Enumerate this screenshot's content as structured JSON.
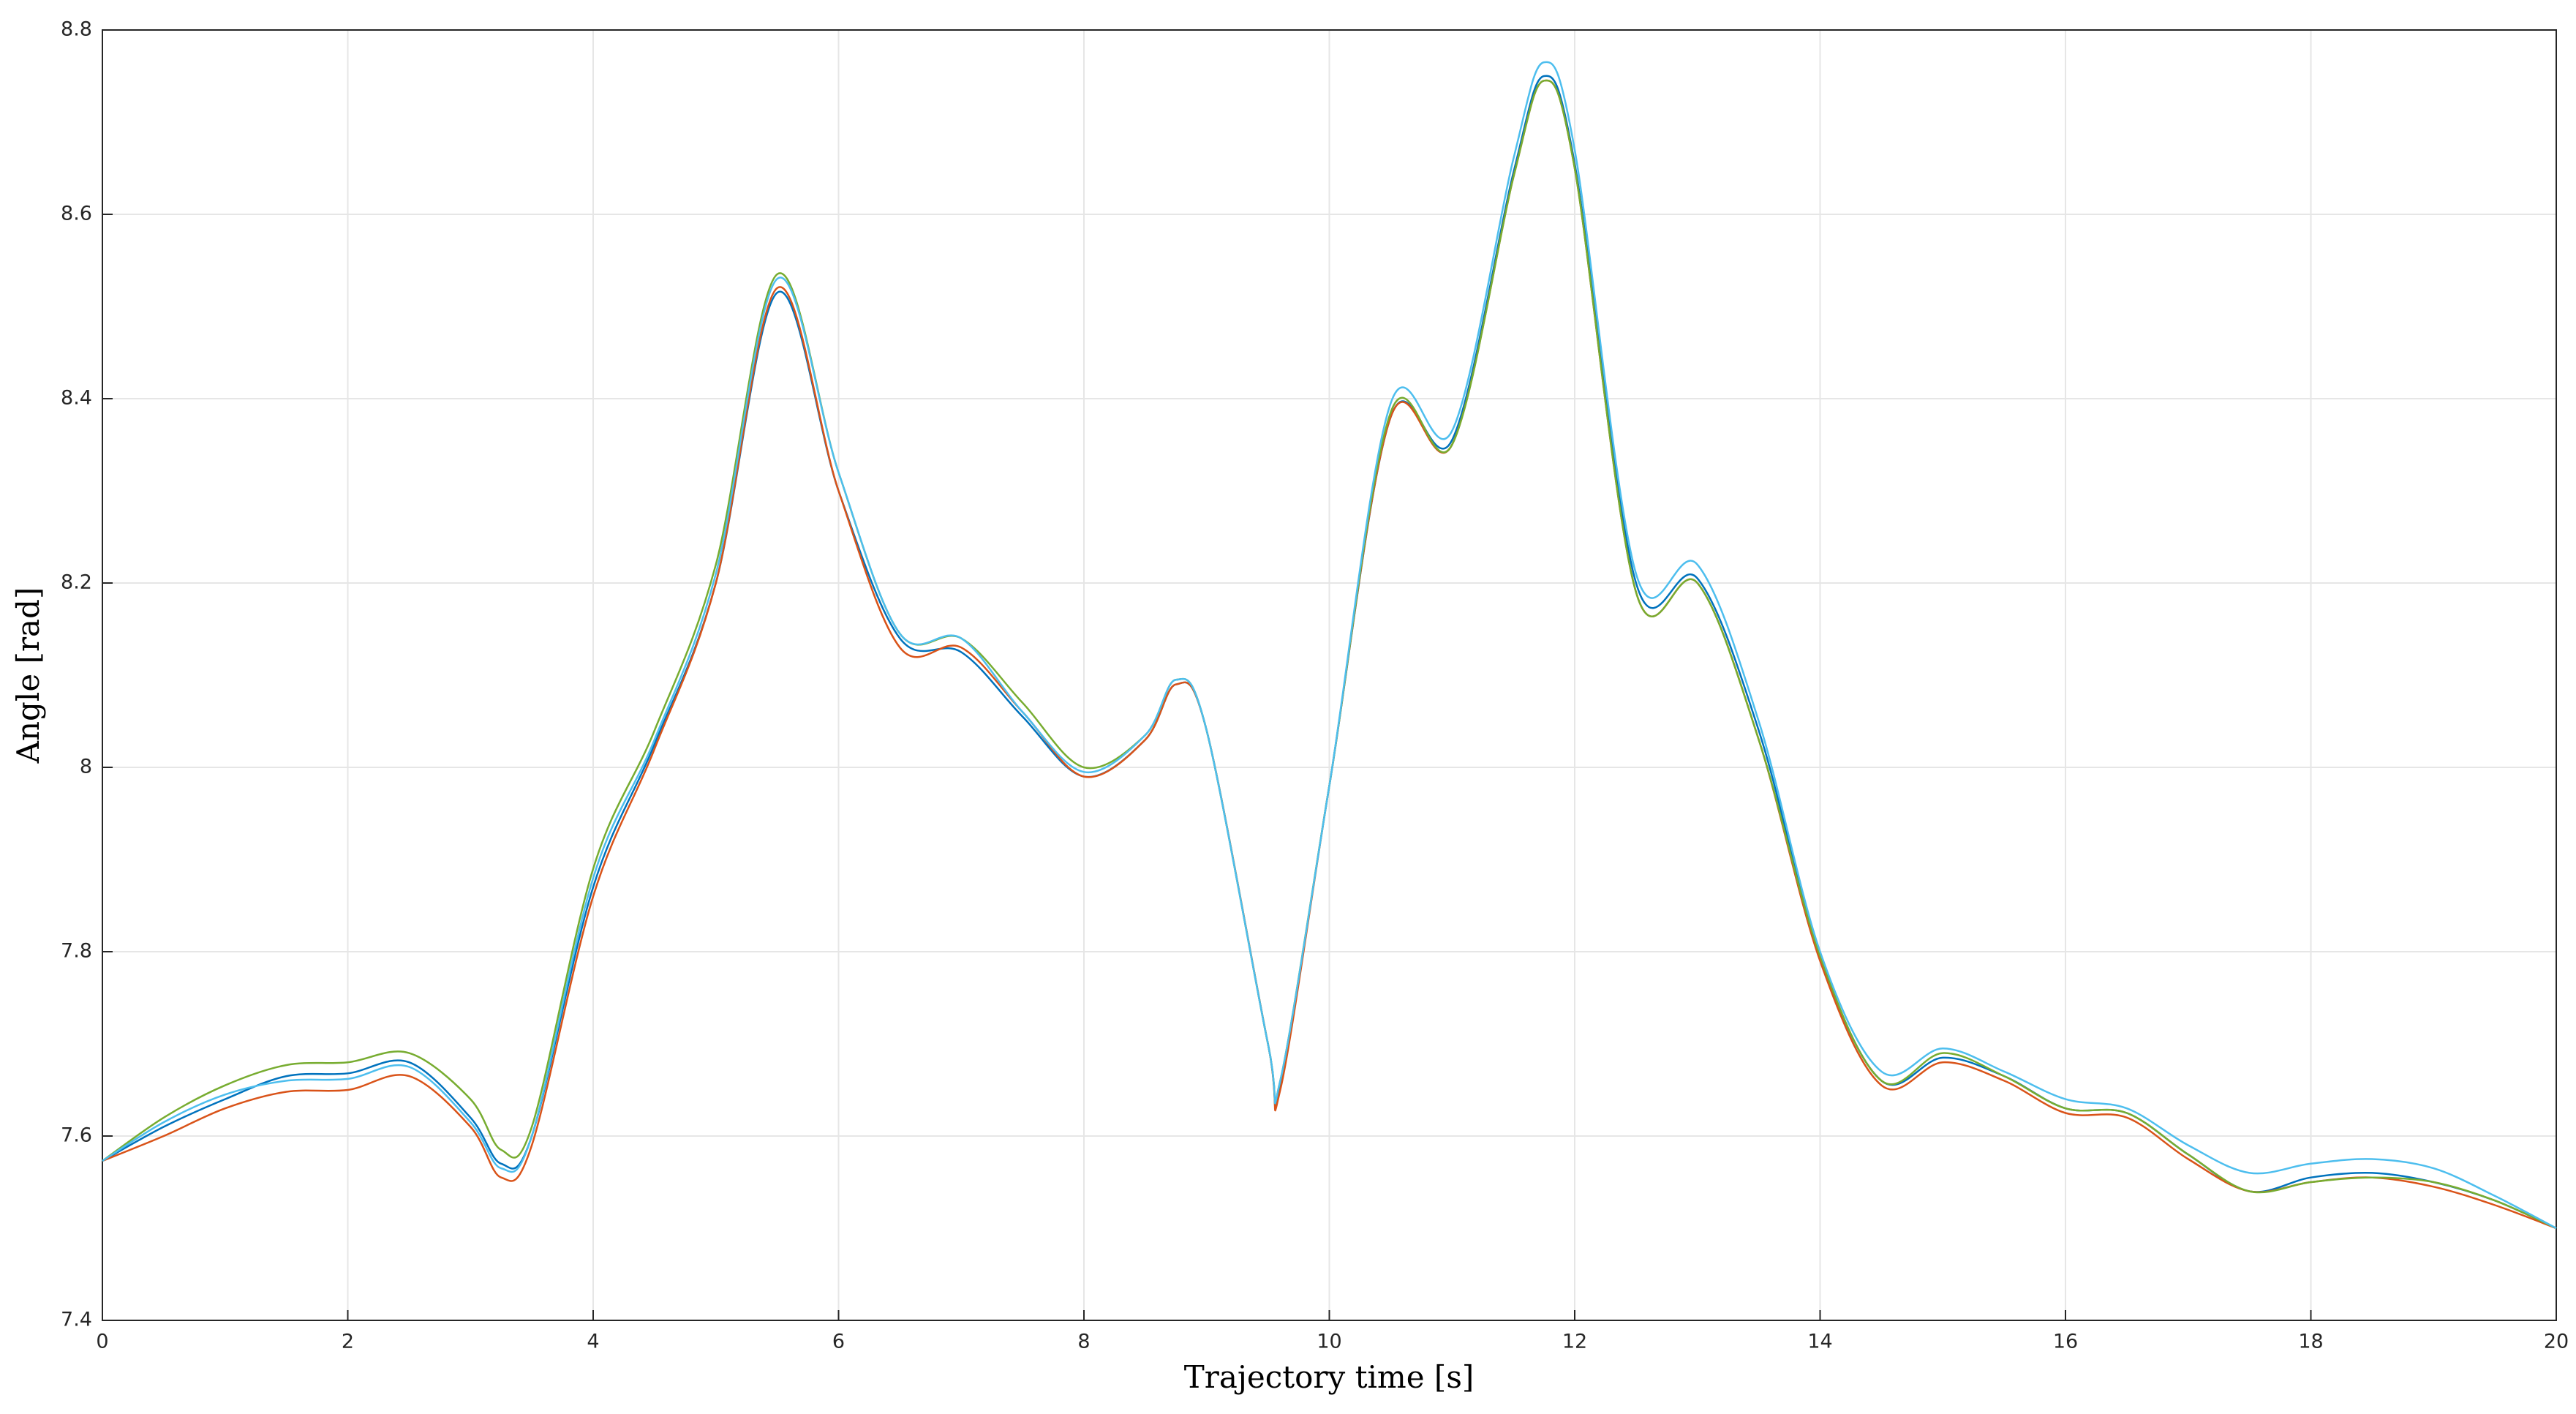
{
  "chart_data": {
    "type": "line",
    "x_label": "Trajectory time [s]",
    "y_label": "Angle [rad]",
    "x": [
      0,
      0.5,
      1,
      1.5,
      2,
      2.5,
      3,
      3.25,
      3.5,
      4,
      4.5,
      5,
      5.5,
      6,
      6.5,
      7,
      7.5,
      8,
      8.5,
      8.75,
      9,
      9.5,
      9.6,
      10,
      10.5,
      11,
      11.5,
      11.75,
      12,
      12.5,
      13,
      13.5,
      14,
      14.5,
      15,
      15.5,
      16,
      16.5,
      17,
      17.5,
      18,
      18.5,
      19,
      19.5,
      20
    ],
    "series": [
      {
        "color": "#0072bd",
        "values": [
          7.573,
          7.61,
          7.64,
          7.665,
          7.668,
          7.68,
          7.62,
          7.57,
          7.6,
          7.87,
          8.025,
          8.2,
          8.515,
          8.3,
          8.14,
          8.125,
          8.055,
          7.99,
          8.03,
          8.09,
          8.04,
          7.7,
          7.655,
          7.98,
          8.38,
          8.355,
          8.645,
          8.75,
          8.655,
          8.2,
          8.205,
          8.04,
          7.795,
          7.66,
          7.685,
          7.665,
          7.63,
          7.625,
          7.58,
          7.54,
          7.555,
          7.56,
          7.55,
          7.53,
          7.5
        ]
      },
      {
        "color": "#d95319",
        "values": [
          7.573,
          7.6,
          7.63,
          7.648,
          7.65,
          7.665,
          7.61,
          7.555,
          7.59,
          7.86,
          8.02,
          8.2,
          8.52,
          8.3,
          8.13,
          8.13,
          8.06,
          7.99,
          8.03,
          8.09,
          8.04,
          7.7,
          7.65,
          7.98,
          8.38,
          8.35,
          8.64,
          8.745,
          8.65,
          8.19,
          8.2,
          8.03,
          7.79,
          7.655,
          7.68,
          7.66,
          7.625,
          7.62,
          7.575,
          7.54,
          7.55,
          7.555,
          7.545,
          7.525,
          7.5
        ]
      },
      {
        "color": "#77ac30",
        "values": [
          7.573,
          7.62,
          7.655,
          7.677,
          7.68,
          7.69,
          7.64,
          7.585,
          7.61,
          7.89,
          8.04,
          8.22,
          8.535,
          8.32,
          8.145,
          8.14,
          8.07,
          8.0,
          8.035,
          8.095,
          8.04,
          7.7,
          7.66,
          7.98,
          8.385,
          8.35,
          8.64,
          8.745,
          8.65,
          8.19,
          8.2,
          8.03,
          7.795,
          7.66,
          7.69,
          7.665,
          7.63,
          7.625,
          7.58,
          7.54,
          7.55,
          7.555,
          7.55,
          7.53,
          7.5
        ]
      },
      {
        "color": "#4dbeee",
        "values": [
          7.573,
          7.615,
          7.645,
          7.66,
          7.662,
          7.675,
          7.615,
          7.565,
          7.6,
          7.88,
          8.03,
          8.21,
          8.53,
          8.32,
          8.145,
          8.14,
          8.06,
          7.995,
          8.035,
          8.095,
          8.04,
          7.7,
          7.66,
          7.98,
          8.395,
          8.365,
          8.66,
          8.765,
          8.67,
          8.21,
          8.22,
          8.05,
          7.8,
          7.67,
          7.695,
          7.67,
          7.64,
          7.63,
          7.59,
          7.56,
          7.57,
          7.575,
          7.565,
          7.535,
          7.5
        ]
      }
    ],
    "xlim": [
      0,
      20
    ],
    "xticks": [
      0,
      2,
      4,
      6,
      8,
      10,
      12,
      14,
      16,
      18,
      20
    ],
    "ylim": [
      7.4,
      8.8
    ],
    "yticks": [
      7.4,
      7.6,
      7.8,
      8,
      8.2,
      8.4,
      8.6,
      8.8
    ],
    "grid": true
  }
}
